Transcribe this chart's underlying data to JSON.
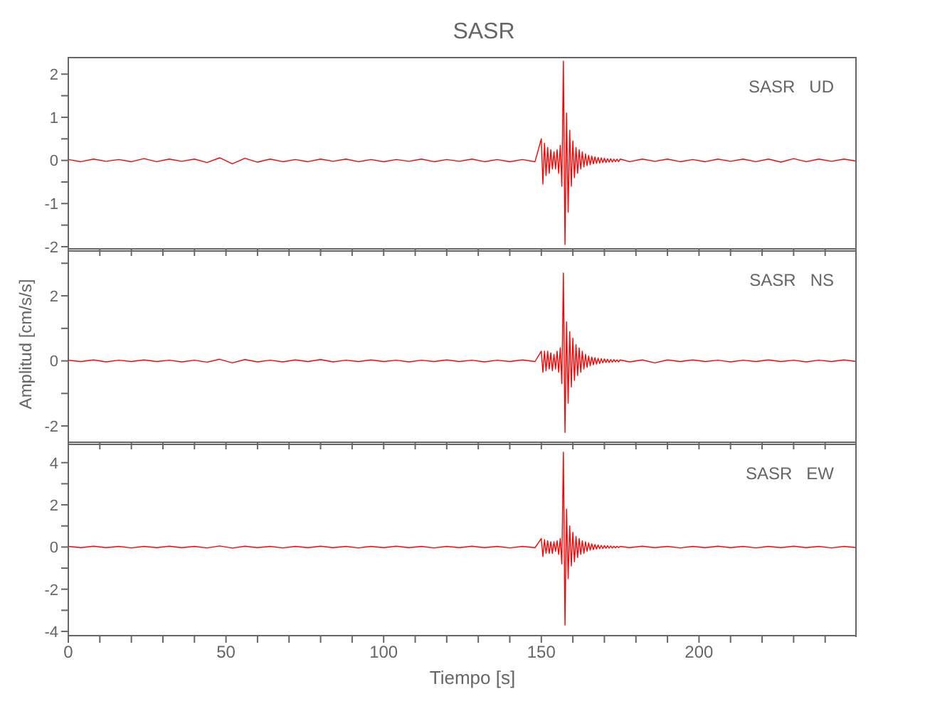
{
  "chart_data": [
    {
      "type": "line",
      "title": "SASR",
      "annotations": [
        "SASR   UD"
      ],
      "tick_labels": "y",
      "xlim": [
        0,
        250
      ],
      "ylim": [
        -2.05,
        2.4
      ],
      "xticks": [
        0,
        {
          "value": 10,
          "label": null
        },
        {
          "value": 20,
          "label": null
        },
        {
          "value": 30,
          "label": null
        },
        {
          "value": 40,
          "label": null
        },
        {
          "value": 50,
          "label": null
        },
        {
          "value": 60,
          "label": null
        },
        {
          "value": 70,
          "label": null
        },
        {
          "value": 80,
          "label": null
        },
        {
          "value": 90,
          "label": null
        },
        {
          "value": 100,
          "label": null
        },
        {
          "value": 110,
          "label": null
        },
        {
          "value": 120,
          "label": null
        },
        {
          "value": 130,
          "label": null
        },
        {
          "value": 140,
          "label": null
        },
        {
          "value": 150,
          "label": null
        },
        {
          "value": 160,
          "label": null
        },
        {
          "value": 170,
          "label": null
        },
        {
          "value": 180,
          "label": null
        },
        {
          "value": 190,
          "label": null
        },
        {
          "value": 200,
          "label": null
        },
        {
          "value": 210,
          "label": null
        },
        {
          "value": 220,
          "label": null
        },
        {
          "value": 230,
          "label": null
        },
        {
          "value": 240,
          "label": null
        }
      ],
      "yticks": [
        -2,
        {
          "value": -1.5,
          "label": null
        },
        -1,
        {
          "value": -0.5,
          "label": null
        },
        0,
        {
          "value": 0.5,
          "label": null
        },
        1,
        {
          "value": 1.5,
          "label": null
        },
        2
      ],
      "x": [
        0,
        4,
        8,
        12,
        16,
        20,
        24,
        28,
        32,
        36,
        40,
        44,
        48,
        52,
        56,
        60,
        64,
        68,
        72,
        76,
        80,
        84,
        88,
        92,
        96,
        100,
        104,
        108,
        112,
        116,
        120,
        124,
        128,
        132,
        136,
        140,
        144,
        148,
        150,
        150.5,
        151,
        151.5,
        152,
        152.5,
        153,
        153.5,
        154,
        154.5,
        155,
        155.5,
        156,
        156.5,
        157,
        157.5,
        158,
        158.5,
        159,
        159.5,
        160,
        160.5,
        161,
        161.5,
        162,
        162.5,
        163,
        163.5,
        164,
        164.5,
        165,
        165.5,
        166,
        166.5,
        167,
        167.5,
        168,
        168.5,
        169,
        169.5,
        170,
        170.5,
        171,
        171.5,
        172,
        172.5,
        173,
        173.5,
        174,
        174.5,
        175,
        178,
        182,
        186,
        190,
        194,
        198,
        202,
        206,
        210,
        214,
        218,
        222,
        226,
        230,
        234,
        238,
        242,
        246,
        250
      ],
      "series": [
        {
          "color": "#ff0000",
          "values": [
            0.02,
            -0.03,
            0.03,
            -0.02,
            0.02,
            -0.03,
            0.04,
            -0.03,
            0.03,
            -0.02,
            0.03,
            -0.05,
            0.06,
            -0.08,
            0.05,
            -0.04,
            0.03,
            -0.03,
            0.02,
            -0.03,
            0.03,
            -0.02,
            0.03,
            -0.03,
            0.02,
            -0.03,
            0.02,
            -0.02,
            0.03,
            -0.03,
            0.02,
            -0.02,
            0.03,
            -0.03,
            0.02,
            -0.03,
            0.02,
            -0.03,
            0.5,
            -0.55,
            0.4,
            -0.35,
            0.3,
            -0.3,
            0.25,
            -0.2,
            0.2,
            -0.2,
            0.25,
            -0.3,
            0.35,
            -0.6,
            2.3,
            -1.95,
            1.1,
            -1.2,
            0.7,
            -0.6,
            0.45,
            -0.4,
            0.3,
            -0.3,
            0.25,
            -0.2,
            0.2,
            -0.15,
            0.15,
            -0.12,
            0.12,
            -0.1,
            0.1,
            -0.08,
            0.08,
            -0.07,
            0.07,
            -0.06,
            0.06,
            -0.05,
            0.05,
            -0.05,
            0.04,
            -0.04,
            0.04,
            -0.04,
            0.03,
            -0.03,
            0.03,
            -0.03,
            0.03,
            -0.03,
            0.03,
            -0.02,
            0.03,
            -0.03,
            0.02,
            -0.03,
            0.03,
            -0.02,
            0.03,
            -0.03,
            0.03,
            -0.04,
            0.04,
            -0.03,
            0.03,
            -0.02,
            0.03,
            -0.02
          ]
        }
      ]
    },
    {
      "type": "line",
      "ylabel": "Amplitud [cm/s/s]",
      "annotations": [
        "SASR   NS"
      ],
      "tick_labels": "y",
      "xlim": [
        0,
        250
      ],
      "ylim": [
        -2.5,
        3.4
      ],
      "xticks": [
        0,
        {
          "value": 10,
          "label": null
        },
        {
          "value": 20,
          "label": null
        },
        {
          "value": 30,
          "label": null
        },
        {
          "value": 40,
          "label": null
        },
        {
          "value": 50,
          "label": null
        },
        {
          "value": 60,
          "label": null
        },
        {
          "value": 70,
          "label": null
        },
        {
          "value": 80,
          "label": null
        },
        {
          "value": 90,
          "label": null
        },
        {
          "value": 100,
          "label": null
        },
        {
          "value": 110,
          "label": null
        },
        {
          "value": 120,
          "label": null
        },
        {
          "value": 130,
          "label": null
        },
        {
          "value": 140,
          "label": null
        },
        {
          "value": 150,
          "label": null
        },
        {
          "value": 160,
          "label": null
        },
        {
          "value": 170,
          "label": null
        },
        {
          "value": 180,
          "label": null
        },
        {
          "value": 190,
          "label": null
        },
        {
          "value": 200,
          "label": null
        },
        {
          "value": 210,
          "label": null
        },
        {
          "value": 220,
          "label": null
        },
        {
          "value": 230,
          "label": null
        },
        {
          "value": 240,
          "label": null
        }
      ],
      "yticks": [
        -2,
        {
          "value": -1,
          "label": null
        },
        0,
        {
          "value": 1,
          "label": null
        },
        2,
        {
          "value": 3,
          "label": null
        }
      ],
      "x": [
        0,
        4,
        8,
        12,
        16,
        20,
        24,
        28,
        32,
        36,
        40,
        44,
        48,
        52,
        56,
        60,
        64,
        68,
        72,
        76,
        80,
        84,
        88,
        92,
        96,
        100,
        104,
        108,
        112,
        116,
        120,
        124,
        128,
        132,
        136,
        140,
        144,
        148,
        150,
        150.5,
        151,
        151.5,
        152,
        152.5,
        153,
        153.5,
        154,
        154.5,
        155,
        155.5,
        156,
        156.5,
        157,
        157.5,
        158,
        158.5,
        159,
        159.5,
        160,
        160.5,
        161,
        161.5,
        162,
        162.5,
        163,
        163.5,
        164,
        164.5,
        165,
        165.5,
        166,
        166.5,
        167,
        167.5,
        168,
        168.5,
        169,
        169.5,
        170,
        170.5,
        171,
        171.5,
        172,
        172.5,
        173,
        173.5,
        174,
        174.5,
        175,
        178,
        182,
        186,
        190,
        194,
        198,
        202,
        206,
        210,
        214,
        218,
        222,
        226,
        230,
        234,
        238,
        242,
        246,
        250
      ],
      "series": [
        {
          "color": "#ff0000",
          "values": [
            0.02,
            -0.02,
            0.03,
            -0.03,
            0.02,
            -0.02,
            0.03,
            -0.02,
            0.02,
            -0.03,
            0.02,
            -0.04,
            0.05,
            -0.06,
            0.04,
            -0.03,
            0.02,
            -0.03,
            0.03,
            -0.02,
            0.04,
            -0.03,
            0.02,
            -0.02,
            0.03,
            -0.02,
            0.02,
            -0.03,
            0.02,
            -0.02,
            0.03,
            -0.02,
            0.02,
            -0.03,
            0.02,
            -0.02,
            0.03,
            -0.02,
            0.3,
            -0.35,
            0.3,
            -0.3,
            0.3,
            -0.25,
            0.25,
            -0.3,
            0.2,
            -0.25,
            0.3,
            -0.35,
            0.4,
            -0.7,
            2.7,
            -2.2,
            1.2,
            -1.3,
            0.9,
            -0.8,
            0.7,
            -0.6,
            0.5,
            -0.45,
            0.4,
            -0.35,
            0.3,
            -0.25,
            0.2,
            -0.2,
            0.15,
            -0.15,
            0.12,
            -0.12,
            0.1,
            -0.1,
            0.08,
            -0.08,
            0.07,
            -0.06,
            0.06,
            -0.05,
            0.05,
            -0.05,
            0.04,
            -0.04,
            0.04,
            -0.03,
            0.03,
            -0.03,
            0.03,
            -0.03,
            0.03,
            -0.06,
            0.03,
            -0.02,
            0.03,
            -0.02,
            0.02,
            -0.03,
            0.02,
            -0.02,
            0.03,
            -0.02,
            0.02,
            -0.03,
            0.02,
            -0.02,
            0.03,
            -0.02
          ]
        }
      ]
    },
    {
      "type": "line",
      "xlabel": "Tiempo [s]",
      "annotations": [
        "SASR   EW"
      ],
      "xlim": [
        0,
        250
      ],
      "ylim": [
        -4.2,
        4.9
      ],
      "xticks": [
        0,
        {
          "value": 10,
          "label": null
        },
        {
          "value": 20,
          "label": null
        },
        {
          "value": 30,
          "label": null
        },
        {
          "value": 40,
          "label": null
        },
        50,
        {
          "value": 60,
          "label": null
        },
        {
          "value": 70,
          "label": null
        },
        {
          "value": 80,
          "label": null
        },
        {
          "value": 90,
          "label": null
        },
        100,
        {
          "value": 110,
          "label": null
        },
        {
          "value": 120,
          "label": null
        },
        {
          "value": 130,
          "label": null
        },
        {
          "value": 140,
          "label": null
        },
        150,
        {
          "value": 160,
          "label": null
        },
        {
          "value": 170,
          "label": null
        },
        {
          "value": 180,
          "label": null
        },
        {
          "value": 190,
          "label": null
        },
        200,
        {
          "value": 210,
          "label": null
        },
        {
          "value": 220,
          "label": null
        },
        {
          "value": 230,
          "label": null
        },
        {
          "value": 240,
          "label": null
        }
      ],
      "yticks": [
        -4,
        {
          "value": -3,
          "label": null
        },
        -2,
        {
          "value": -1,
          "label": null
        },
        0,
        {
          "value": 1,
          "label": null
        },
        2,
        {
          "value": 3,
          "label": null
        },
        4
      ],
      "x": [
        0,
        4,
        8,
        12,
        16,
        20,
        24,
        28,
        32,
        36,
        40,
        44,
        48,
        52,
        56,
        60,
        64,
        68,
        72,
        76,
        80,
        84,
        88,
        92,
        96,
        100,
        104,
        108,
        112,
        116,
        120,
        124,
        128,
        132,
        136,
        140,
        144,
        148,
        150,
        150.5,
        151,
        151.5,
        152,
        152.5,
        153,
        153.5,
        154,
        154.5,
        155,
        155.5,
        156,
        156.5,
        157,
        157.5,
        158,
        158.5,
        159,
        159.5,
        160,
        160.5,
        161,
        161.5,
        162,
        162.5,
        163,
        163.5,
        164,
        164.5,
        165,
        165.5,
        166,
        166.5,
        167,
        167.5,
        168,
        168.5,
        169,
        169.5,
        170,
        170.5,
        171,
        171.5,
        172,
        172.5,
        173,
        173.5,
        174,
        174.5,
        175,
        178,
        182,
        186,
        190,
        194,
        198,
        202,
        206,
        210,
        214,
        218,
        222,
        226,
        230,
        234,
        238,
        242,
        246,
        250
      ],
      "series": [
        {
          "color": "#ff0000",
          "values": [
            0.03,
            -0.03,
            0.04,
            -0.03,
            0.03,
            -0.04,
            0.03,
            -0.03,
            0.04,
            -0.03,
            0.03,
            -0.04,
            0.05,
            -0.05,
            0.04,
            -0.03,
            0.03,
            -0.04,
            0.03,
            -0.03,
            0.04,
            -0.03,
            0.03,
            -0.04,
            0.03,
            -0.03,
            0.04,
            -0.03,
            0.03,
            -0.04,
            0.03,
            -0.03,
            0.04,
            -0.03,
            0.03,
            -0.04,
            0.03,
            -0.03,
            0.4,
            -0.45,
            0.35,
            -0.3,
            0.3,
            -0.3,
            0.25,
            -0.3,
            0.25,
            -0.2,
            0.3,
            -0.35,
            0.4,
            -0.8,
            4.5,
            -3.7,
            1.8,
            -1.5,
            1.0,
            -0.9,
            0.7,
            -0.7,
            0.5,
            -0.5,
            0.4,
            -0.35,
            0.3,
            -0.3,
            0.25,
            -0.2,
            0.2,
            -0.15,
            0.15,
            -0.12,
            0.12,
            -0.1,
            0.1,
            -0.08,
            0.08,
            -0.07,
            0.07,
            -0.06,
            0.06,
            -0.05,
            0.05,
            -0.05,
            0.04,
            -0.04,
            0.04,
            -0.03,
            0.03,
            -0.03,
            0.04,
            -0.03,
            0.03,
            -0.04,
            0.03,
            -0.03,
            0.04,
            -0.03,
            0.03,
            -0.04,
            0.03,
            -0.03,
            0.04,
            -0.03,
            0.03,
            -0.04,
            0.03,
            -0.03
          ]
        }
      ]
    }
  ]
}
